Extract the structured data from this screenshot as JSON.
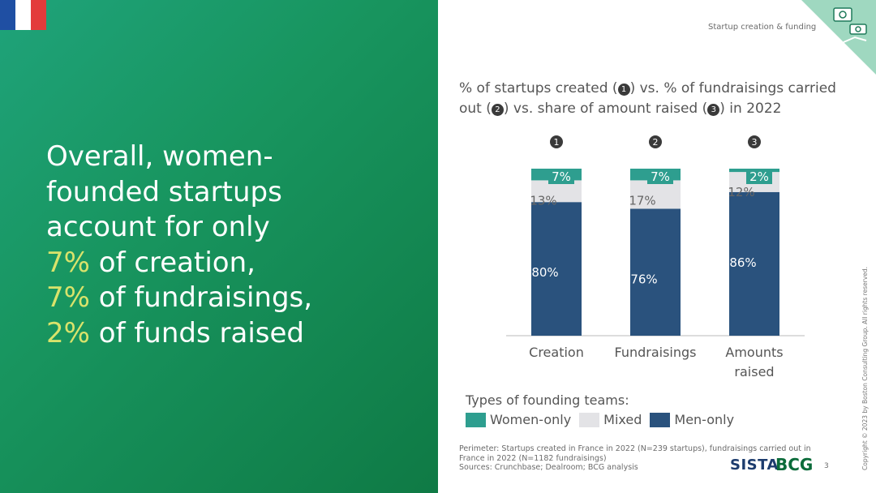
{
  "header": {
    "section_label": "Startup creation & funding"
  },
  "headline": {
    "line1": "Overall, women-",
    "line2": "founded startups",
    "line3": "account for only",
    "line4_value": "7%",
    "line4_text": " of creation,",
    "line5_value": "7%",
    "line5_text": " of fundraisings,",
    "line6_value": "2%",
    "line6_text": " of funds raised"
  },
  "title": {
    "part1": "% of startups created (",
    "badge1": "1",
    "part2": ") vs. % of fundraisings carried out (",
    "badge2": "2",
    "part3": ") vs. share of amount raised (",
    "badge3": "3",
    "part4": ") in 2022"
  },
  "legend": {
    "title": "Types of founding teams:",
    "items": [
      "Women-only",
      "Mixed",
      "Men-only"
    ]
  },
  "colors": {
    "women_only": "#2e9e8f",
    "mixed": "#e3e3e6",
    "men_only": "#2a527d",
    "highlight": "#d9e36b",
    "flag_blue": "#1f4fa3",
    "flag_white": "#ffffff",
    "flag_red": "#e33b3b"
  },
  "icons": {
    "flag": "france-flag-icon",
    "corner": "money-hand-icon"
  },
  "chart_data": {
    "type": "bar",
    "stacked": true,
    "categories": [
      "Creation",
      "Fundraisings",
      "Amounts raised"
    ],
    "category_lines": [
      [
        "Creation"
      ],
      [
        "Fundraisings"
      ],
      [
        "Amounts",
        "raised"
      ]
    ],
    "badges": [
      "1",
      "2",
      "3"
    ],
    "series": [
      {
        "name": "Men-only",
        "values": [
          80,
          76,
          86
        ],
        "labels": [
          "80%",
          "76%",
          "86%"
        ]
      },
      {
        "name": "Mixed",
        "values": [
          13,
          17,
          12
        ],
        "labels": [
          "13%",
          "17%",
          "12%"
        ]
      },
      {
        "name": "Women-only",
        "values": [
          7,
          7,
          2
        ],
        "labels": [
          "7%",
          "7%",
          "2%"
        ]
      }
    ],
    "ylim": [
      0,
      100
    ],
    "grid": false,
    "legend_position": "bottom"
  },
  "footnote": {
    "perimeter": "Perimeter: Startups created in France in 2022 (N=239 startups), fundraisings carried out in France in 2022 (N=1182 fundraisings)",
    "sources": "Sources: Crunchbase; Dealroom; BCG analysis"
  },
  "page_number": "3",
  "logos": {
    "sista": "SISTA",
    "bcg": "BCG"
  },
  "copyright": "Copyright © 2023 by Boston Consulting Group. All rights reserved."
}
